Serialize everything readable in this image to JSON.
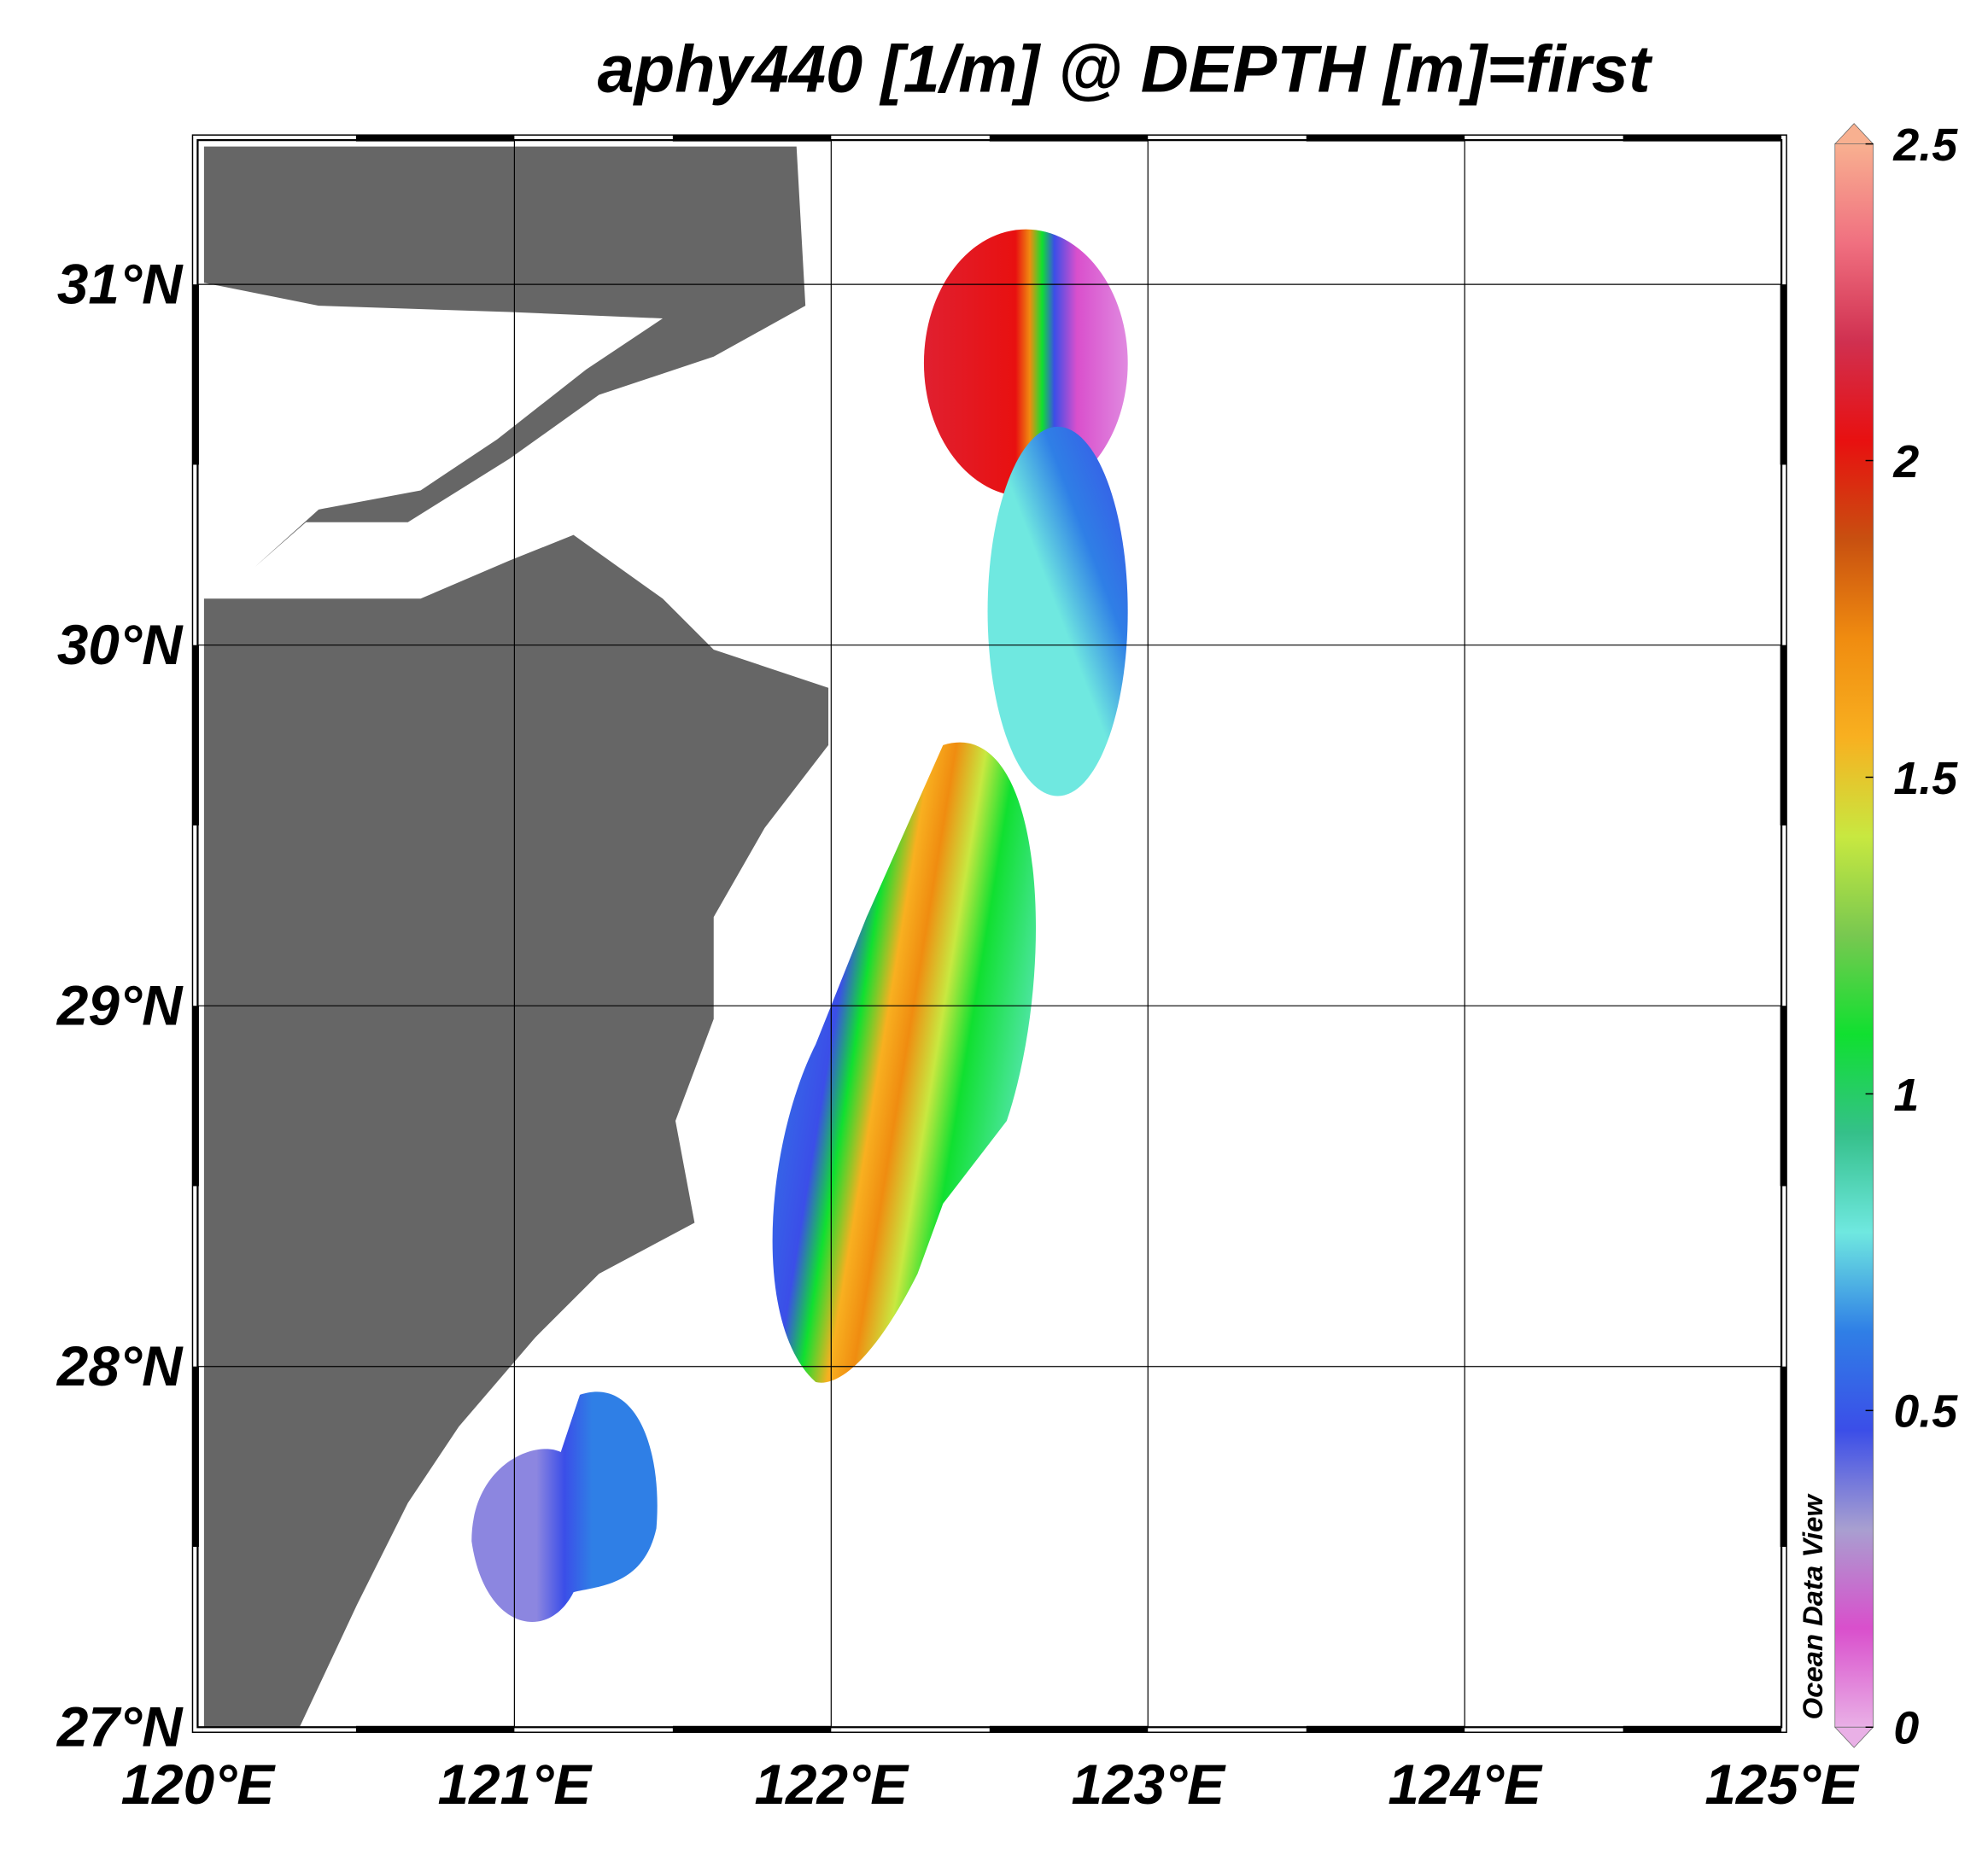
{
  "chart_data": {
    "type": "map",
    "title": "aphy440 [1/m] @ DEPTH [m]=first",
    "watermark": "Ocean Data View",
    "xlim": [
      120,
      125
    ],
    "ylim": [
      27,
      31.4
    ],
    "xticks": [
      {
        "value": 120,
        "label": "120°E"
      },
      {
        "value": 121,
        "label": "121°E"
      },
      {
        "value": 122,
        "label": "122°E"
      },
      {
        "value": 123,
        "label": "123°E"
      },
      {
        "value": 124,
        "label": "124°E"
      },
      {
        "value": 125,
        "label": "125°E"
      }
    ],
    "yticks": [
      {
        "value": 27,
        "label": "27°N"
      },
      {
        "value": 28,
        "label": "28°N"
      },
      {
        "value": 29,
        "label": "29°N"
      },
      {
        "value": 30,
        "label": "30°N"
      },
      {
        "value": 31,
        "label": "31°N"
      }
    ],
    "grid": true,
    "colorbar": {
      "lim": [
        0,
        2.5
      ],
      "ticks": [
        0,
        0.5,
        1,
        1.5,
        2,
        2.5
      ],
      "colors": [
        "#e9b0e6",
        "#d94fcc",
        "#a89fd0",
        "#3b4ee8",
        "#2f7fe6",
        "#6fe8e0",
        "#35c08a",
        "#10e030",
        "#78c850",
        "#c8e840",
        "#f8b020",
        "#f08c10",
        "#c85010",
        "#e81010",
        "#d03050",
        "#f07080",
        "#f8b090"
      ]
    }
  }
}
